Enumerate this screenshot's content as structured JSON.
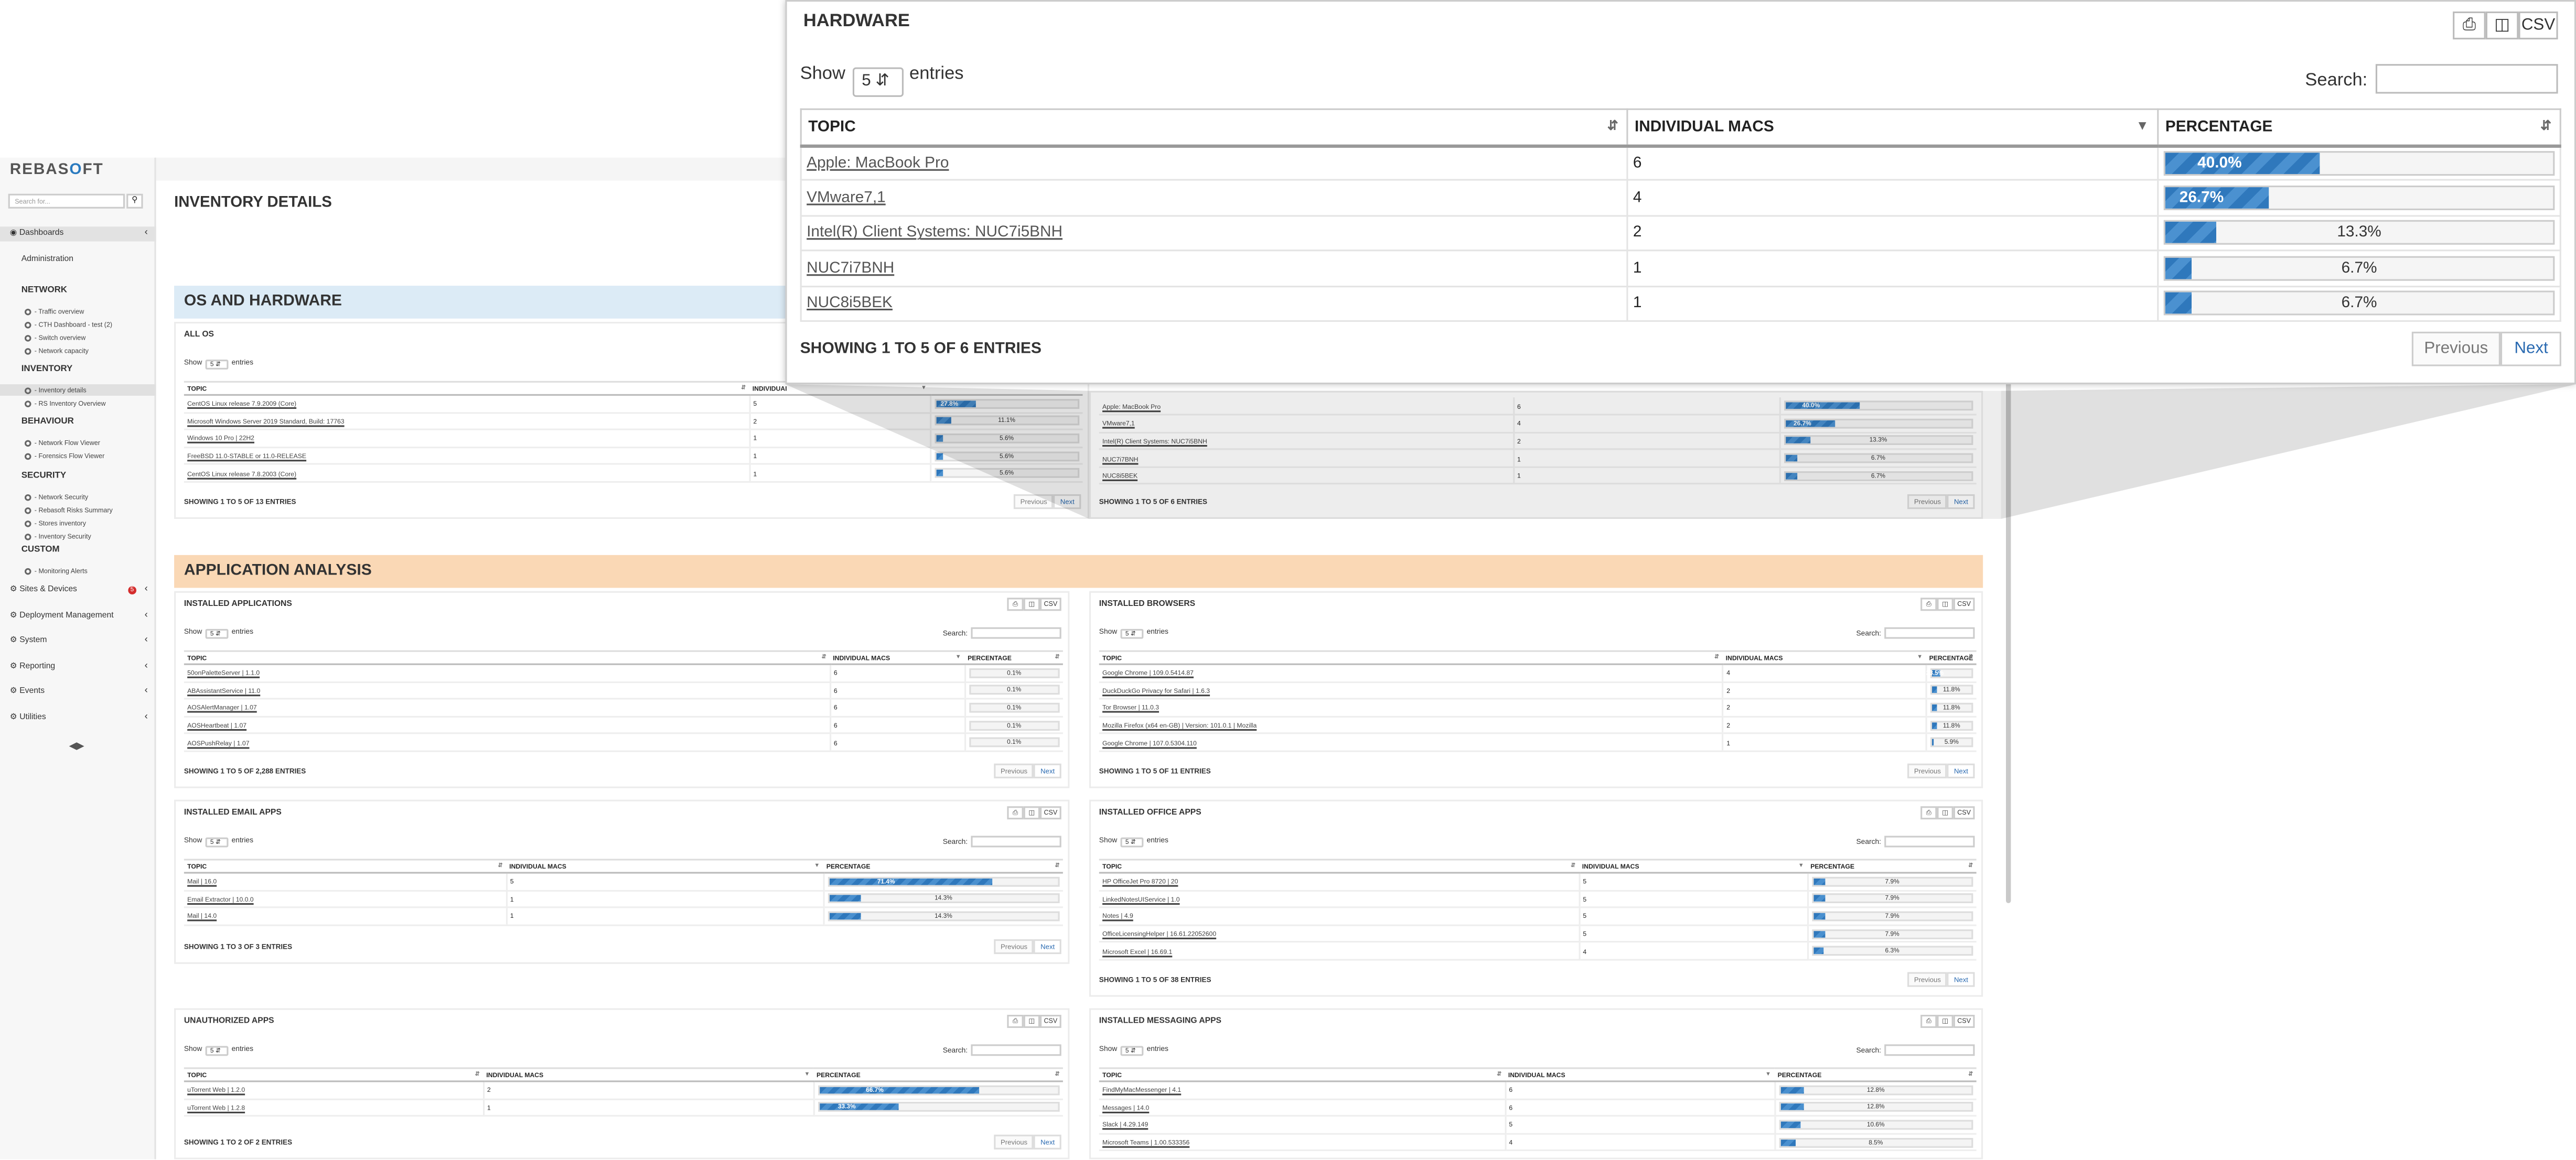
{
  "brand": {
    "name_a": "REBAS",
    "name_o": "O",
    "name_b": "FT"
  },
  "sidebar": {
    "search_placeholder": "Search for...",
    "search_icon": "search-icon",
    "dashboards": "Dashboards",
    "administration": "Administration",
    "sections": [
      {
        "title": "NETWORK",
        "items": [
          "- Traffic overview",
          "- CTH Dashboard - test (2)",
          "- Switch overview",
          "- Network capacity"
        ]
      },
      {
        "title": "INVENTORY",
        "items": [
          "- Inventory details",
          "- RS Inventory Overview"
        ]
      },
      {
        "title": "BEHAVIOUR",
        "items": [
          "- Network Flow Viewer",
          "- Forensics Flow Viewer"
        ]
      },
      {
        "title": "SECURITY",
        "items": [
          "- Network Security",
          "- Rebasoft Risks Summary",
          "- Stores inventory",
          "- Inventory Security"
        ]
      },
      {
        "title": "CUSTOM",
        "items": [
          "- Monitoring Alerts"
        ]
      }
    ],
    "menu": [
      {
        "label": "Sites & Devices",
        "badge": "5"
      },
      {
        "label": "Deployment Management"
      },
      {
        "label": "System"
      },
      {
        "label": "Reporting"
      },
      {
        "label": "Events"
      },
      {
        "label": "Utilities"
      }
    ]
  },
  "page": {
    "title": "INVENTORY DETAILS",
    "band1": "OS AND HARDWARE",
    "band2": "APPLICATION ANALYSIS"
  },
  "common": {
    "show": "Show",
    "entries": "entries",
    "search": "Search:",
    "previous": "Previous",
    "next": "Next",
    "csv": "CSV",
    "col_topic": "TOPIC",
    "col_macs": "INDIVIDUAL MACS",
    "col_pct": "PERCENTAGE",
    "select_value": "5"
  },
  "cards": {
    "all_os": {
      "title": "ALL OS",
      "col_macs": "INDIVIDUAI",
      "showing": "SHOWING 1 TO 5 OF 13 ENTRIES",
      "rows": [
        {
          "topic": "CentOS Linux release 7.9.2009 (Core)",
          "macs": "5",
          "pct": 27.8,
          "label": "27.8%"
        },
        {
          "topic": "Microsoft Windows Server 2019 Standard, Build: 17763",
          "macs": "2",
          "pct": 11.1,
          "label": "11.1%"
        },
        {
          "topic": "Windows 10 Pro | 22H2",
          "macs": "1",
          "pct": 5.6,
          "label": "5.6%"
        },
        {
          "topic": "FreeBSD 11.0-STABLE or 11.0-RELEASE",
          "macs": "1",
          "pct": 5.6,
          "label": "5.6%"
        },
        {
          "topic": "CentOS Linux release 7.8.2003 (Core)",
          "macs": "1",
          "pct": 5.6,
          "label": "5.6%"
        }
      ]
    },
    "hardware_small": {
      "showing": "SHOWING 1 TO 5 OF 6 ENTRIES",
      "rows": [
        {
          "topic": "Apple: MacBook Pro",
          "macs": "6",
          "pct": 40.0,
          "label": "40.0%"
        },
        {
          "topic": "VMware7,1",
          "macs": "4",
          "pct": 26.7,
          "label": "26.7%"
        },
        {
          "topic": "Intel(R) Client Systems: NUC7i5BNH",
          "macs": "2",
          "pct": 13.3,
          "label": "13.3%"
        },
        {
          "topic": "NUC7i7BNH",
          "macs": "1",
          "pct": 6.7,
          "label": "6.7%"
        },
        {
          "topic": "NUC8i5BEK",
          "macs": "1",
          "pct": 6.7,
          "label": "6.7%"
        }
      ]
    },
    "installed_apps": {
      "title": "INSTALLED APPLICATIONS",
      "showing": "SHOWING 1 TO 5 OF 2,288 ENTRIES",
      "rows": [
        {
          "topic": "50onPaletteServer | 1.1.0",
          "macs": "6",
          "pct": 0.1,
          "label": "0.1%"
        },
        {
          "topic": "ABAssistantService | 11.0",
          "macs": "6",
          "pct": 0.1,
          "label": "0.1%"
        },
        {
          "topic": "AOSAlertManager | 1.07",
          "macs": "6",
          "pct": 0.1,
          "label": "0.1%"
        },
        {
          "topic": "AOSHeartbeat | 1.07",
          "macs": "6",
          "pct": 0.1,
          "label": "0.1%"
        },
        {
          "topic": "AOSPushRelay | 1.07",
          "macs": "6",
          "pct": 0.1,
          "label": "0.1%"
        }
      ]
    },
    "installed_browsers": {
      "title": "INSTALLED BROWSERS",
      "showing": "SHOWING 1 TO 5 OF 11 ENTRIES",
      "rows": [
        {
          "topic": "Google Chrome | 109.0.5414.87",
          "macs": "4",
          "pct": 23.5,
          "label": "23.5%"
        },
        {
          "topic": "DuckDuckGo Privacy for Safari | 1.6.3",
          "macs": "2",
          "pct": 11.8,
          "label": "11.8%"
        },
        {
          "topic": "Tor Browser | 11.0.3",
          "macs": "2",
          "pct": 11.8,
          "label": "11.8%"
        },
        {
          "topic": "Mozilla Firefox (x64 en-GB) | Version: 101.0.1 | Mozilla",
          "macs": "2",
          "pct": 11.8,
          "label": "11.8%"
        },
        {
          "topic": "Google Chrome | 107.0.5304.110",
          "macs": "1",
          "pct": 5.9,
          "label": "5.9%"
        }
      ]
    },
    "installed_email": {
      "title": "INSTALLED EMAIL APPS",
      "showing": "SHOWING 1 TO 3 OF 3 ENTRIES",
      "rows": [
        {
          "topic": "Mail | 16.0",
          "macs": "5",
          "pct": 71.4,
          "label": "71.4%"
        },
        {
          "topic": "Email Extractor | 10.0.0",
          "macs": "1",
          "pct": 14.3,
          "label": "14.3%"
        },
        {
          "topic": "Mail | 14.0",
          "macs": "1",
          "pct": 14.3,
          "label": "14.3%"
        }
      ]
    },
    "installed_office": {
      "title": "INSTALLED OFFICE APPS",
      "showing": "SHOWING 1 TO 5 OF 38 ENTRIES",
      "rows": [
        {
          "topic": "HP OfficeJet Pro 8720 | 20",
          "macs": "5",
          "pct": 7.9,
          "label": "7.9%"
        },
        {
          "topic": "LinkedNotesUIService | 1.0",
          "macs": "5",
          "pct": 7.9,
          "label": "7.9%"
        },
        {
          "topic": "Notes | 4.9",
          "macs": "5",
          "pct": 7.9,
          "label": "7.9%"
        },
        {
          "topic": "OfficeLicensingHelper | 16.61.22052600",
          "macs": "5",
          "pct": 7.9,
          "label": "7.9%"
        },
        {
          "topic": "Microsoft Excel | 16.69.1",
          "macs": "4",
          "pct": 6.3,
          "label": "6.3%"
        }
      ]
    },
    "unauthorized": {
      "title": "UNAUTHORIZED APPS",
      "showing": "SHOWING 1 TO 2 OF 2 ENTRIES",
      "rows": [
        {
          "topic": "uTorrent Web | 1.2.0",
          "macs": "2",
          "pct": 66.7,
          "label": "66.7%"
        },
        {
          "topic": "uTorrent Web | 1.2.8",
          "macs": "1",
          "pct": 33.3,
          "label": "33.3%"
        }
      ]
    },
    "installed_messaging": {
      "title": "INSTALLED MESSAGING APPS",
      "rows": [
        {
          "topic": "FindMyMacMessenger | 4.1",
          "macs": "6",
          "pct": 12.8,
          "label": "12.8%"
        },
        {
          "topic": "Messages | 14.0",
          "macs": "6",
          "pct": 12.8,
          "label": "12.8%"
        },
        {
          "topic": "Slack | 4.29.149",
          "macs": "5",
          "pct": 10.6,
          "label": "10.6%"
        },
        {
          "topic": "Microsoft Teams | 1.00.533356",
          "macs": "4",
          "pct": 8.5,
          "label": "8.5%"
        }
      ]
    }
  },
  "zoom": {
    "title": "HARDWARE",
    "showing": "SHOWING 1 TO 5 OF 6 ENTRIES"
  },
  "colors": {
    "accent": "#2f78bc",
    "band_blue": "#dcebf6",
    "band_orange": "#fad8b5",
    "badge": "#d42d2d"
  }
}
